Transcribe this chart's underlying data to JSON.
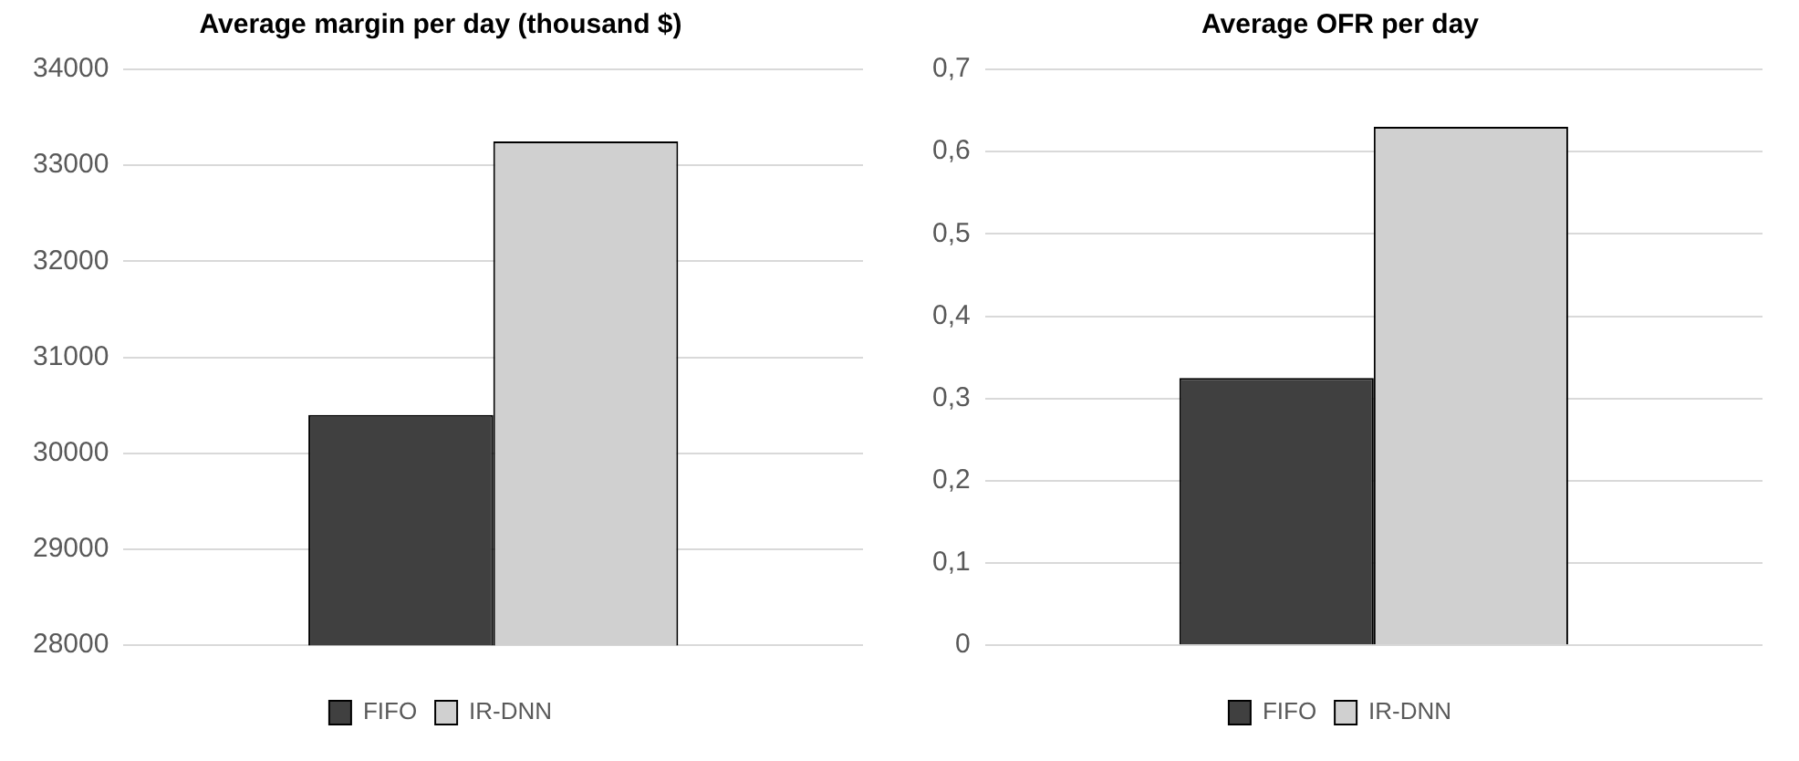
{
  "chart_data": [
    {
      "type": "bar",
      "title": "Average margin per day (thousand $)",
      "categories": [
        null
      ],
      "series": [
        {
          "name": "FIFO",
          "color": "#404040",
          "values": [
            30400
          ]
        },
        {
          "name": "IR-DNN",
          "color": "#d0d0d0",
          "values": [
            33250
          ]
        }
      ],
      "ylim": [
        28000,
        34000
      ],
      "yticks": [
        28000,
        29000,
        30000,
        31000,
        32000,
        33000,
        34000
      ],
      "grid": "y",
      "legend": "bottom"
    },
    {
      "type": "bar",
      "title": "Average OFR per day",
      "categories": [
        null
      ],
      "series": [
        {
          "name": "FIFO",
          "color": "#404040",
          "values": [
            0.325
          ]
        },
        {
          "name": "IR-DNN",
          "color": "#d0d0d0",
          "values": [
            0.63
          ]
        }
      ],
      "ylim": [
        0,
        0.7
      ],
      "yticks": [
        0,
        {
          "value": 0.1,
          "label": "0,1"
        },
        {
          "value": 0.2,
          "label": "0,2"
        },
        {
          "value": 0.3,
          "label": "0,3"
        },
        {
          "value": 0.4,
          "label": "0,4"
        },
        {
          "value": 0.5,
          "label": "0,5"
        },
        {
          "value": 0.6,
          "label": "0,6"
        },
        {
          "value": 0.7,
          "label": "0,7"
        }
      ],
      "grid": "y",
      "legend": "bottom"
    }
  ]
}
